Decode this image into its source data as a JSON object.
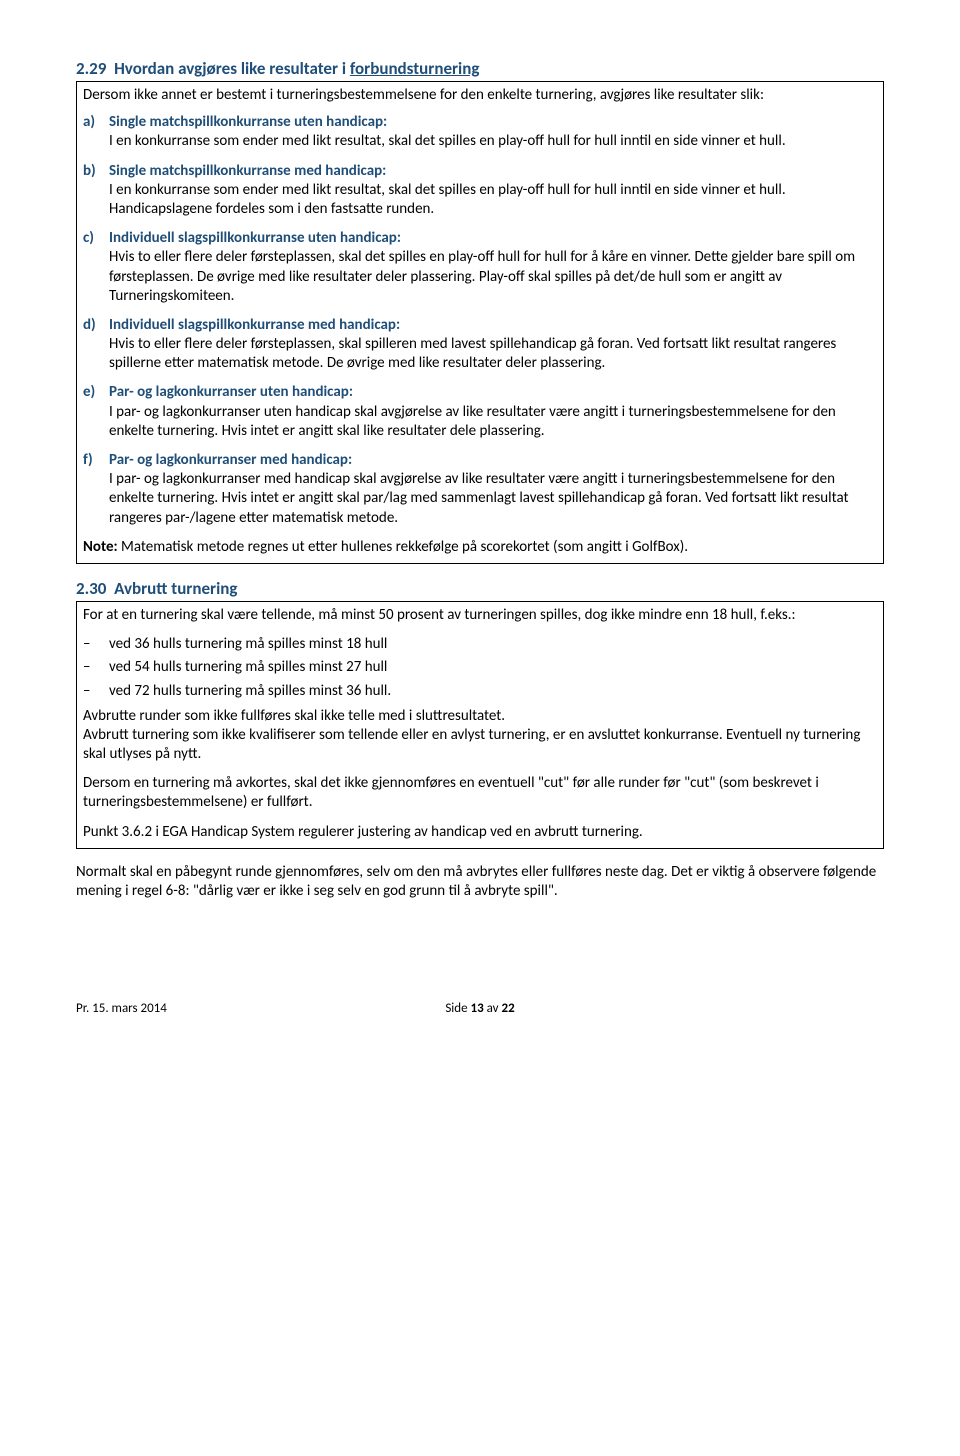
{
  "colors": {
    "headingColor": "#1f4e79",
    "bodyText": "#000000",
    "border": "#000000",
    "background": "#ffffff"
  },
  "typography": {
    "bodyFontSize": 15,
    "headingFontSize": 17,
    "footerFontSize": 13,
    "fontFamily": "Calibri"
  },
  "section229": {
    "number": "2.29",
    "titlePlain": "Hvordan avgjøres like resultater i ",
    "titleUnderlined": "forbundsturnering",
    "intro": "Dersom ikke annet er bestemt i turneringsbestemmelsene for den enkelte turnering, avgjøres like resultater slik:",
    "items": [
      {
        "marker": "a)",
        "title": "Single matchspillkonkurranse uten handicap:",
        "body": "I en konkurranse som ender med likt resultat, skal det spilles en play-off hull for hull inntil en side vinner et hull."
      },
      {
        "marker": "b)",
        "title": "Single matchspillkonkurranse med handicap:",
        "body": "I en konkurranse som ender med likt resultat, skal det spilles en play-off hull for hull inntil en side vinner et hull. Handicapslagene fordeles som i den fastsatte runden."
      },
      {
        "marker": "c)",
        "title": "Individuell slagspillkonkurranse uten handicap:",
        "body": "Hvis to eller flere deler førsteplassen, skal det spilles en play-off hull for hull for å kåre en vinner. Dette gjelder bare spill om førsteplassen. De øvrige med like resultater deler plassering. Play-off skal spilles på det/de hull som er angitt av Turneringskomiteen."
      },
      {
        "marker": "d)",
        "title": "Individuell slagspillkonkurranse med handicap:",
        "body": "Hvis to eller flere deler førsteplassen, skal spilleren med lavest spillehandicap gå foran. Ved fortsatt likt resultat rangeres spillerne etter matematisk metode. De øvrige med like resultater deler plassering."
      },
      {
        "marker": "e)",
        "title": "Par- og lagkonkurranser uten handicap:",
        "body": "I par- og lagkonkurranser uten handicap skal avgjørelse av like resultater være angitt i turneringsbestemmelsene for den enkelte turnering. Hvis intet er angitt skal like resultater dele plassering."
      },
      {
        "marker": "f)",
        "title": "Par- og lagkonkurranser med handicap:",
        "body": "I par- og lagkonkurranser med handicap skal avgjørelse av like resultater være angitt i turneringsbestemmelsene for den enkelte turnering. Hvis intet er angitt skal par/lag med sammenlagt lavest spillehandicap gå foran. Ved fortsatt likt resultat rangeres par-/lagene etter matematisk metode."
      }
    ],
    "noteLabel": "Note:",
    "noteBody": " Matematisk metode regnes ut etter hullenes rekkefølge på scorekortet (som angitt i GolfBox)."
  },
  "section230": {
    "number": "2.30",
    "title": "Avbrutt turnering",
    "para1": "For at en turnering skal være tellende, må minst 50 prosent av turneringen spilles, dog ikke mindre enn 18 hull, f.eks.:",
    "bullets": [
      "ved 36 hulls turnering må spilles minst 18 hull",
      "ved 54 hulls turnering må spilles minst 27 hull",
      "ved 72 hulls turnering må spilles minst 36 hull."
    ],
    "para2": "Avbrutte runder som ikke fullføres skal ikke telle med i sluttresultatet.",
    "para3": "Avbrutt turnering som ikke kvalifiserer som tellende eller en avlyst turnering, er en avsluttet konkurranse. Eventuell ny turnering skal utlyses på nytt.",
    "para4": "Dersom en turnering må avkortes, skal det ikke gjennomføres en eventuell \"cut\" før alle runder før \"cut\" (som beskrevet i turneringsbestemmelsene) er fullført.",
    "para5": "Punkt 3.6.2 i EGA Handicap System regulerer justering av handicap ved en avbrutt turnering."
  },
  "afterBox": "Normalt skal en påbegynt runde gjennomføres, selv om den må avbrytes eller fullføres neste dag. Det er viktig å observere følgende mening i regel 6-8: \"dårlig vær er ikke i seg selv en god grunn til å avbryte spill\".",
  "footer": {
    "left": "Pr. 15. mars 2014",
    "centerPrefix": "Side ",
    "pageNum": "13",
    "centerMid": " av ",
    "pageTotal": "22"
  }
}
